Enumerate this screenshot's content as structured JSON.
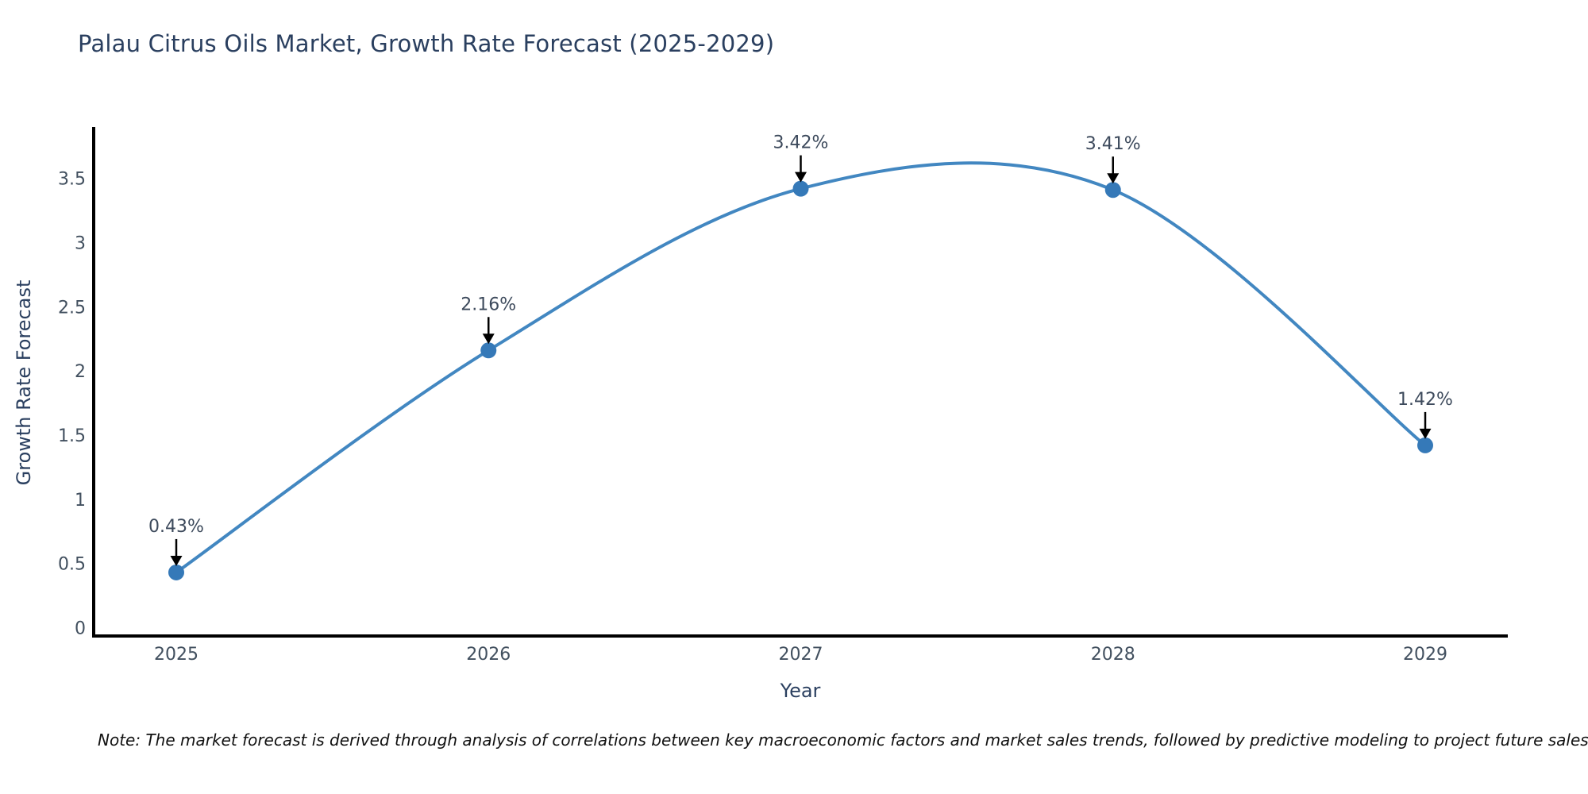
{
  "chart_data": {
    "type": "line",
    "title": "Palau Citrus Oils Market, Growth Rate Forecast (2025-2029)",
    "xlabel": "Year",
    "ylabel": "Growth Rate Forecast",
    "x": [
      "2025",
      "2026",
      "2027",
      "2028",
      "2029"
    ],
    "series": [
      {
        "name": "Growth Rate Forecast",
        "values": [
          0.43,
          2.16,
          3.42,
          3.41,
          1.42
        ],
        "point_labels": [
          "0.43%",
          "2.16%",
          "3.42%",
          "3.41%",
          "1.42%"
        ]
      }
    ],
    "ytick_labels": [
      "0",
      "0.5",
      "1",
      "1.5",
      "2",
      "2.5",
      "3",
      "3.5"
    ],
    "ytick_values": [
      0,
      0.5,
      1,
      1.5,
      2,
      2.5,
      3,
      3.5
    ],
    "ylim": [
      -0.09,
      3.9
    ],
    "line_shape": "spline",
    "grid": false,
    "legend_position": "none",
    "annotations": "value labels above each point with downward black arrows"
  },
  "note": "Note: The market forecast is derived through analysis of correlations between key macroeconomic factors and market sales trends, followed by predictive modeling to project future sales",
  "colors": {
    "line": "#4287c1",
    "marker": "#3579b8",
    "axis": "#000000",
    "arrow": "#000000",
    "title_text": "#2a3f5f",
    "axis_title_text": "#2a3f5f",
    "tick_text": "#42505f",
    "annotation_text": "#3d4a5c",
    "note_text": "#111111",
    "background": "#ffffff"
  }
}
